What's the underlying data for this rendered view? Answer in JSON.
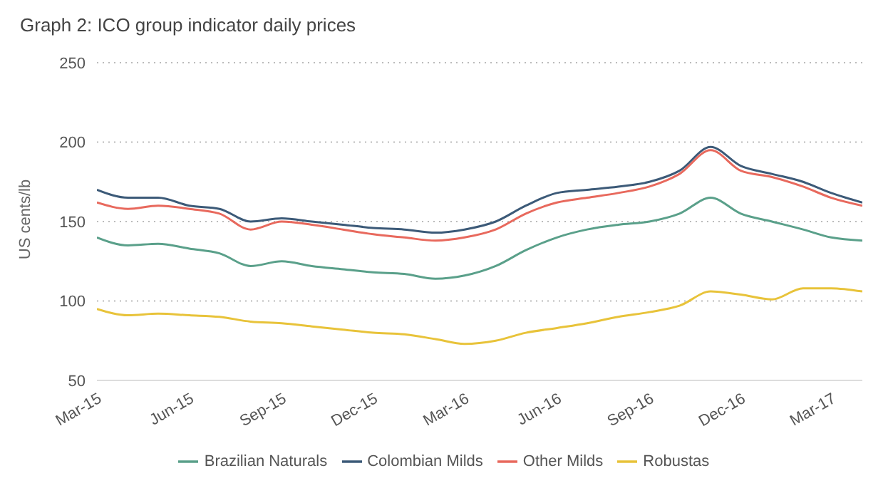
{
  "chart_data": {
    "type": "line",
    "title": "Graph 2: ICO group indicator daily prices",
    "ylabel": "US cents/lb",
    "x": [
      "2015-03",
      "2015-04",
      "2015-05",
      "2015-06",
      "2015-07",
      "2015-08",
      "2015-09",
      "2015-10",
      "2015-11",
      "2015-12",
      "2016-01",
      "2016-02",
      "2016-03",
      "2016-04",
      "2016-05",
      "2016-06",
      "2016-07",
      "2016-08",
      "2016-09",
      "2016-10",
      "2016-11",
      "2016-12",
      "2017-01",
      "2017-02",
      "2017-03",
      "2017-04"
    ],
    "series": [
      {
        "name": "Colombian Milds",
        "color": "#3c5a78",
        "values": [
          170,
          165,
          165,
          160,
          158,
          150,
          152,
          150,
          148,
          146,
          145,
          143,
          145,
          150,
          160,
          168,
          170,
          172,
          175,
          182,
          197,
          185,
          180,
          175,
          168,
          162
        ]
      },
      {
        "name": "Other Milds",
        "color": "#e8695d",
        "values": [
          162,
          158,
          160,
          158,
          155,
          145,
          150,
          148,
          145,
          142,
          140,
          138,
          140,
          145,
          155,
          162,
          165,
          168,
          172,
          180,
          195,
          182,
          178,
          172,
          165,
          160
        ]
      },
      {
        "name": "Brazilian Naturals",
        "color": "#5aa08a",
        "values": [
          140,
          135,
          136,
          133,
          130,
          122,
          125,
          122,
          120,
          118,
          117,
          114,
          116,
          122,
          132,
          140,
          145,
          148,
          150,
          155,
          165,
          155,
          150,
          145,
          140,
          138
        ]
      },
      {
        "name": "Robustas",
        "color": "#e8c33a",
        "values": [
          95,
          91,
          92,
          91,
          90,
          87,
          86,
          84,
          82,
          80,
          79,
          76,
          73,
          75,
          80,
          83,
          86,
          90,
          93,
          97,
          106,
          104,
          101,
          108,
          108,
          106
        ]
      }
    ],
    "xlim": [
      "2015-03",
      "2017-04"
    ],
    "xticks": [
      {
        "value": "2015-03",
        "label": "Mar-15"
      },
      {
        "value": "2015-06",
        "label": "Jun-15"
      },
      {
        "value": "2015-09",
        "label": "Sep-15"
      },
      {
        "value": "2015-12",
        "label": "Dec-15"
      },
      {
        "value": "2016-03",
        "label": "Mar-16"
      },
      {
        "value": "2016-06",
        "label": "Jun-16"
      },
      {
        "value": "2016-09",
        "label": "Sep-16"
      },
      {
        "value": "2016-12",
        "label": "Dec-16"
      },
      {
        "value": "2017-03",
        "label": "Mar-17"
      }
    ],
    "ylim": [
      50,
      250
    ],
    "yticks": [
      50,
      100,
      150,
      200,
      250
    ],
    "grid": "y",
    "legend": "bottom",
    "marker": "none",
    "line_style": "solid"
  }
}
